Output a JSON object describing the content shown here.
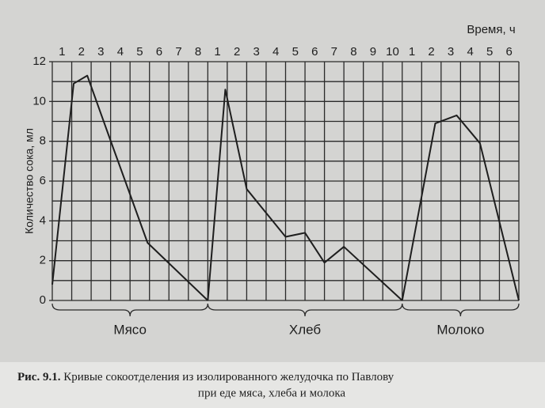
{
  "chart_data": {
    "type": "line",
    "x_label": "Время, ч",
    "y_label": "Количество сока, мл",
    "xlim": [
      0,
      24
    ],
    "ylim": [
      0,
      12
    ],
    "yticks": [
      0,
      2,
      4,
      6,
      8,
      10,
      12
    ],
    "xticks": [
      {
        "value": 0.5,
        "label": "1"
      },
      {
        "value": 1.5,
        "label": "2"
      },
      {
        "value": 2.5,
        "label": "3"
      },
      {
        "value": 3.5,
        "label": "4"
      },
      {
        "value": 4.5,
        "label": "5"
      },
      {
        "value": 5.5,
        "label": "6"
      },
      {
        "value": 6.5,
        "label": "7"
      },
      {
        "value": 7.5,
        "label": "8"
      },
      {
        "value": 8.5,
        "label": "1"
      },
      {
        "value": 9.5,
        "label": "2"
      },
      {
        "value": 10.5,
        "label": "3"
      },
      {
        "value": 11.5,
        "label": "4"
      },
      {
        "value": 12.5,
        "label": "5"
      },
      {
        "value": 13.5,
        "label": "6"
      },
      {
        "value": 14.5,
        "label": "7"
      },
      {
        "value": 15.5,
        "label": "8"
      },
      {
        "value": 16.5,
        "label": "9"
      },
      {
        "value": 17.5,
        "label": "10"
      },
      {
        "value": 18.5,
        "label": "1"
      },
      {
        "value": 19.5,
        "label": "2"
      },
      {
        "value": 20.5,
        "label": "3"
      },
      {
        "value": 21.5,
        "label": "4"
      },
      {
        "value": 22.5,
        "label": "5"
      },
      {
        "value": 23.5,
        "label": "6"
      }
    ],
    "grid": true,
    "color": "#1e1e1e",
    "series": [
      {
        "x": [
          0,
          1.1,
          1.8,
          2.9,
          4.9,
          8
        ],
        "values": [
          0.8,
          10.9,
          11.3,
          8.3,
          2.9,
          0
        ]
      },
      {
        "x": [
          8,
          8.9,
          10,
          12,
          13,
          14,
          15,
          18
        ],
        "values": [
          0,
          10.6,
          5.6,
          3.2,
          3.4,
          1.9,
          2.7,
          0
        ]
      },
      {
        "x": [
          18,
          19.7,
          20.8,
          22,
          24
        ],
        "values": [
          0,
          8.9,
          9.3,
          7.9,
          0
        ]
      }
    ],
    "groups": [
      {
        "label": "Мясо",
        "range": [
          0,
          8
        ]
      },
      {
        "label": "Хлеб",
        "range": [
          8,
          18
        ]
      },
      {
        "label": "Молоко",
        "range": [
          18,
          24
        ]
      }
    ]
  },
  "caption": {
    "label": "Рис. 9.1.",
    "line1": "Кривые сокоотделения из изолированного желудочка по Павлову",
    "line2": "при еде мяса, хлеба и молока"
  }
}
